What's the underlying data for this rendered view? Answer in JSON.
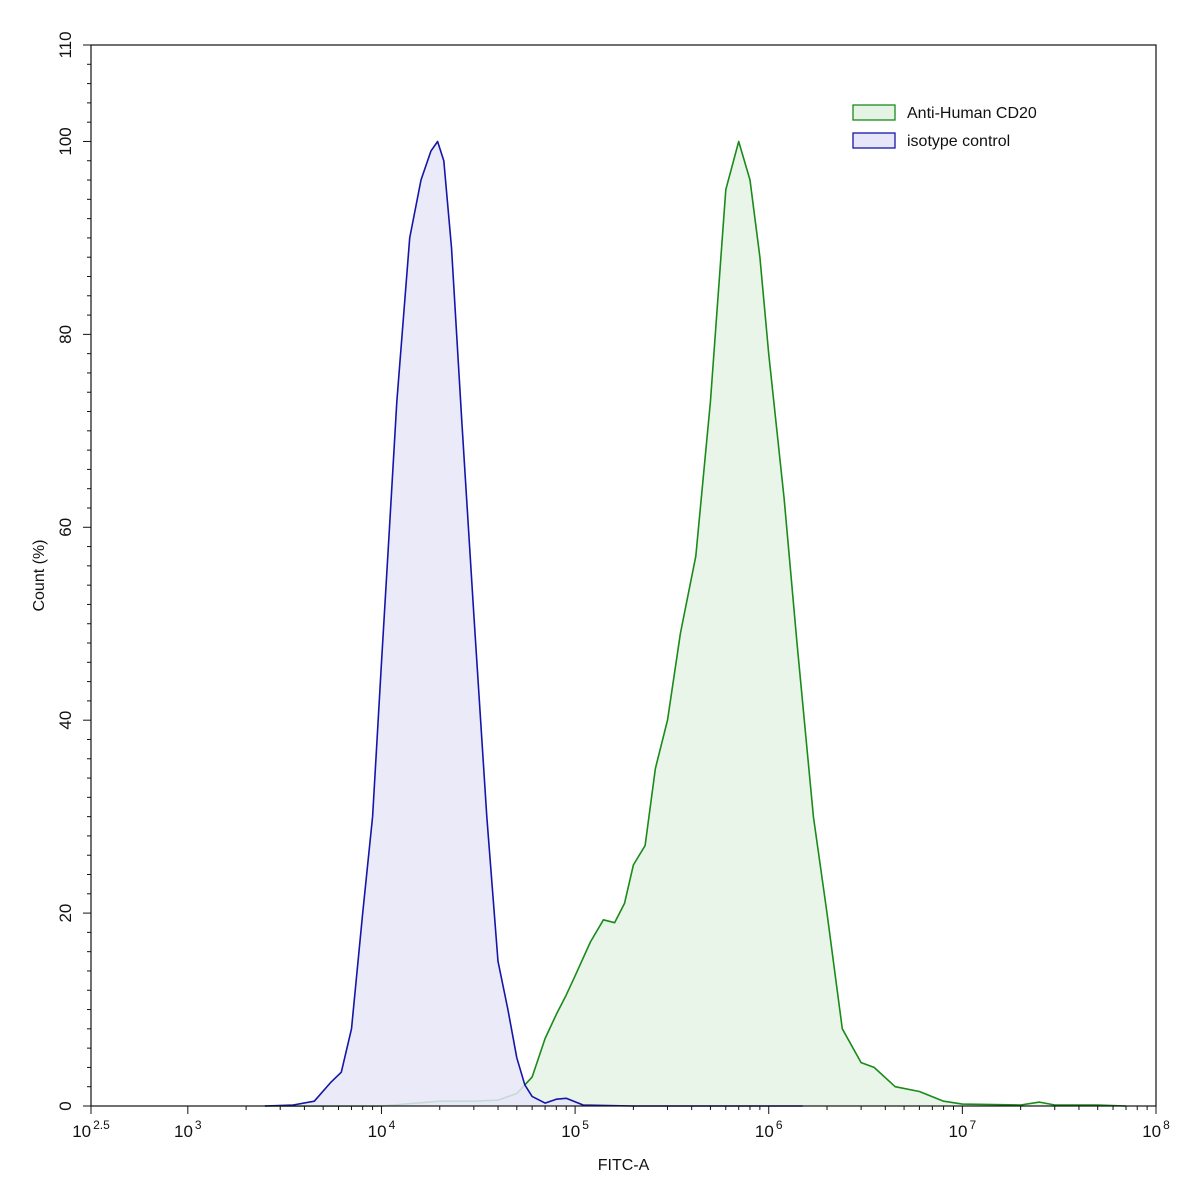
{
  "chart_data": {
    "type": "area",
    "xlabel": "FITC-A",
    "ylabel": "Count  (%)",
    "x_scale": "log10",
    "xlim": [
      316.23,
      100000000
    ],
    "ylim": [
      0,
      110
    ],
    "x_ticks": [
      {
        "value": 316.23,
        "base": "10",
        "exp": "2.5"
      },
      {
        "value": 1000,
        "base": "10",
        "exp": "3"
      },
      {
        "value": 10000,
        "base": "10",
        "exp": "4"
      },
      {
        "value": 100000,
        "base": "10",
        "exp": "5"
      },
      {
        "value": 1000000,
        "base": "10",
        "exp": "6"
      },
      {
        "value": 10000000,
        "base": "10",
        "exp": "7"
      },
      {
        "value": 100000000,
        "base": "10",
        "exp": "8"
      }
    ],
    "y_ticks": [
      "0",
      "20",
      "40",
      "60",
      "80",
      "100",
      "110"
    ],
    "grid": false,
    "legend_position": "top-right",
    "series": [
      {
        "name": "Anti-Human CD20",
        "color": "#1a8a1a",
        "fill": "#e5f3e5",
        "points": [
          [
            2500,
            0
          ],
          [
            10000,
            0
          ],
          [
            20000,
            0.5
          ],
          [
            30000,
            0.5
          ],
          [
            40000,
            0.6
          ],
          [
            50000,
            1.3
          ],
          [
            60000,
            3.0
          ],
          [
            70000,
            7.0
          ],
          [
            80000,
            9.5
          ],
          [
            90000,
            11.5
          ],
          [
            100000,
            13.5
          ],
          [
            120000,
            17.0
          ],
          [
            140000,
            19.3
          ],
          [
            160000,
            19.0
          ],
          [
            180000,
            21.0
          ],
          [
            200000,
            25.0
          ],
          [
            230000,
            27.0
          ],
          [
            260000,
            35.0
          ],
          [
            300000,
            40.0
          ],
          [
            350000,
            49.0
          ],
          [
            420000,
            57.0
          ],
          [
            500000,
            73.0
          ],
          [
            600000,
            95.0
          ],
          [
            700000,
            100.0
          ],
          [
            800000,
            96.0
          ],
          [
            900000,
            88.0
          ],
          [
            1000000,
            78.0
          ],
          [
            1200000,
            63.0
          ],
          [
            1400000,
            48.0
          ],
          [
            1700000,
            30.0
          ],
          [
            2000000,
            20.0
          ],
          [
            2400000,
            8.0
          ],
          [
            3000000,
            4.5
          ],
          [
            3500000,
            4.0
          ],
          [
            4500000,
            2.0
          ],
          [
            6000000,
            1.5
          ],
          [
            8000000,
            0.5
          ],
          [
            10000000,
            0.2
          ],
          [
            20000000,
            0.1
          ],
          [
            25000000,
            0.4
          ],
          [
            30000000,
            0.1
          ],
          [
            50000000,
            0.1
          ],
          [
            70000000,
            0
          ]
        ]
      },
      {
        "name": "isotype control",
        "color": "#1515a8",
        "fill": "#e6e6f8",
        "points": [
          [
            2500,
            0
          ],
          [
            3500,
            0.1
          ],
          [
            4500,
            0.5
          ],
          [
            5500,
            2.5
          ],
          [
            6200,
            3.5
          ],
          [
            7000,
            8.0
          ],
          [
            8000,
            20.0
          ],
          [
            9000,
            30.0
          ],
          [
            10000,
            46.0
          ],
          [
            11000,
            60.0
          ],
          [
            12000,
            73.0
          ],
          [
            14000,
            90.0
          ],
          [
            16000,
            96.0
          ],
          [
            18000,
            99.0
          ],
          [
            19500,
            100.0
          ],
          [
            21000,
            98.0
          ],
          [
            23000,
            89.0
          ],
          [
            26000,
            71.0
          ],
          [
            30000,
            51.0
          ],
          [
            35000,
            30.0
          ],
          [
            40000,
            15.0
          ],
          [
            45000,
            10.0
          ],
          [
            50000,
            5.0
          ],
          [
            55000,
            2.2
          ],
          [
            60000,
            1.0
          ],
          [
            70000,
            0.3
          ],
          [
            80000,
            0.7
          ],
          [
            90000,
            0.8
          ],
          [
            110000,
            0.1
          ],
          [
            200000,
            0
          ],
          [
            1500000,
            0
          ]
        ]
      }
    ]
  }
}
